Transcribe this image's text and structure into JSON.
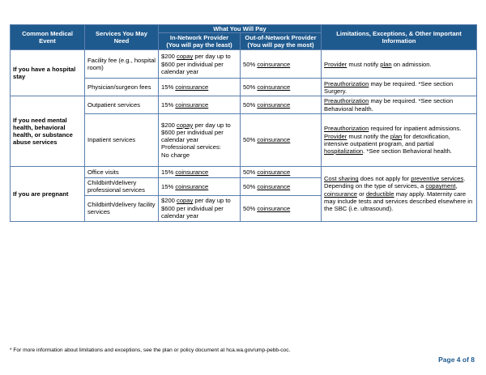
{
  "table": {
    "header": {
      "event": "Common Medical Event",
      "services": "Services You May Need",
      "what_you_pay": "What You Will Pay",
      "in_network": "In-Network Provider",
      "in_network_note": "(You will pay the least)",
      "out_network": "Out-of-Network Provider",
      "out_network_note": "(You will pay the most)",
      "limitations": "Limitations, Exceptions, & Other Important Information"
    },
    "groups": [
      {
        "event": "If you have a hospital stay",
        "rows": [
          {
            "service": "Facility fee (e.g., hospital room)",
            "in_network": [
              [
                {
                  "text": "$200 "
                },
                {
                  "underlined": "copay"
                },
                {
                  "text": " per day up to $600 per individual per calendar year"
                }
              ]
            ],
            "out_network": [
              [
                {
                  "text": "50% "
                },
                {
                  "underlined": "coinsurance"
                }
              ]
            ],
            "limitations": [
              [
                {
                  "underlined": "Provider"
                },
                {
                  "text": " must notify "
                },
                {
                  "underlined": "plan"
                },
                {
                  "text": " on admission."
                }
              ]
            ]
          },
          {
            "service": "Physician/surgeon fees",
            "in_network": [
              [
                {
                  "text": "15% "
                },
                {
                  "underlined": "coinsurance"
                }
              ]
            ],
            "out_network": [
              [
                {
                  "text": "50% "
                },
                {
                  "underlined": "coinsurance"
                }
              ]
            ],
            "limitations": [
              [
                {
                  "underlined": "Preauthorization"
                },
                {
                  "text": " may be required. *See section Surgery."
                }
              ]
            ]
          }
        ]
      },
      {
        "event": "If you need mental health, behavioral health, or substance abuse services",
        "rows": [
          {
            "service": "Outpatient services",
            "in_network": [
              [
                {
                  "text": "15% "
                },
                {
                  "underlined": "coinsurance"
                }
              ]
            ],
            "out_network": [
              [
                {
                  "text": "50% "
                },
                {
                  "underlined": "coinsurance"
                }
              ]
            ],
            "limitations": [
              [
                {
                  "underlined": "Preauthorization"
                },
                {
                  "text": " may be required. *See section Behavioral health."
                }
              ]
            ]
          },
          {
            "service": "Inpatient services",
            "in_network": [
              [
                {
                  "text": "$200 "
                },
                {
                  "underlined": "copay"
                },
                {
                  "text": " per day up to $600 per individual per calendar year"
                }
              ],
              [
                {
                  "text": "Professional services:"
                }
              ],
              [
                {
                  "text": "No charge"
                }
              ]
            ],
            "out_network": [
              [
                {
                  "text": "50% "
                },
                {
                  "underlined": "coinsurance"
                }
              ]
            ],
            "limitations": [
              [
                {
                  "underlined": "Preauthorization"
                },
                {
                  "text": " required for inpatient admissions. "
                },
                {
                  "underlined": "Provider"
                },
                {
                  "text": " must notify the "
                },
                {
                  "underlined": "plan"
                },
                {
                  "text": " for detoxification, intensive outpatient program, and partial "
                },
                {
                  "underlined": "hospitalization"
                },
                {
                  "text": ". *See section Behavioral health."
                }
              ]
            ]
          }
        ]
      },
      {
        "event": "If you are pregnant",
        "limitations": [
          [
            {
              "underlined": "Cost sharing"
            },
            {
              "text": " does not apply for "
            },
            {
              "underlined": "preventive services"
            },
            {
              "text": ". Depending on the type of services, a "
            },
            {
              "underlined": "copayment"
            },
            {
              "text": ", "
            },
            {
              "underlined": "coinsurance"
            },
            {
              "text": " or "
            },
            {
              "underlined": "deductible"
            },
            {
              "text": " may apply. Maternity care may include tests and services described elsewhere in the SBC (i.e. ultrasound)."
            }
          ]
        ],
        "rows": [
          {
            "service": "Office visits",
            "in_network": [
              [
                {
                  "text": "15% "
                },
                {
                  "underlined": "coinsurance"
                }
              ]
            ],
            "out_network": [
              [
                {
                  "text": "50% "
                },
                {
                  "underlined": "coinsurance"
                }
              ]
            ]
          },
          {
            "service": "Childbirth/delivery professional services",
            "in_network": [
              [
                {
                  "text": "15% "
                },
                {
                  "underlined": "coinsurance"
                }
              ]
            ],
            "out_network": [
              [
                {
                  "text": "50% "
                },
                {
                  "underlined": "coinsurance"
                }
              ]
            ]
          },
          {
            "service": "Childbirth/delivery facility services",
            "in_network": [
              [
                {
                  "text": "$200 "
                },
                {
                  "underlined": "copay"
                },
                {
                  "text": " per day up to $600 per individual per calendar year"
                }
              ]
            ],
            "out_network": [
              [
                {
                  "text": "50% "
                },
                {
                  "underlined": "coinsurance"
                }
              ]
            ]
          }
        ]
      }
    ]
  },
  "footnote": "* For more information about limitations and exceptions, see the plan or policy document at hca.wa.gov/ump-pebb-coc.",
  "page_number": "Page 4 of 8"
}
